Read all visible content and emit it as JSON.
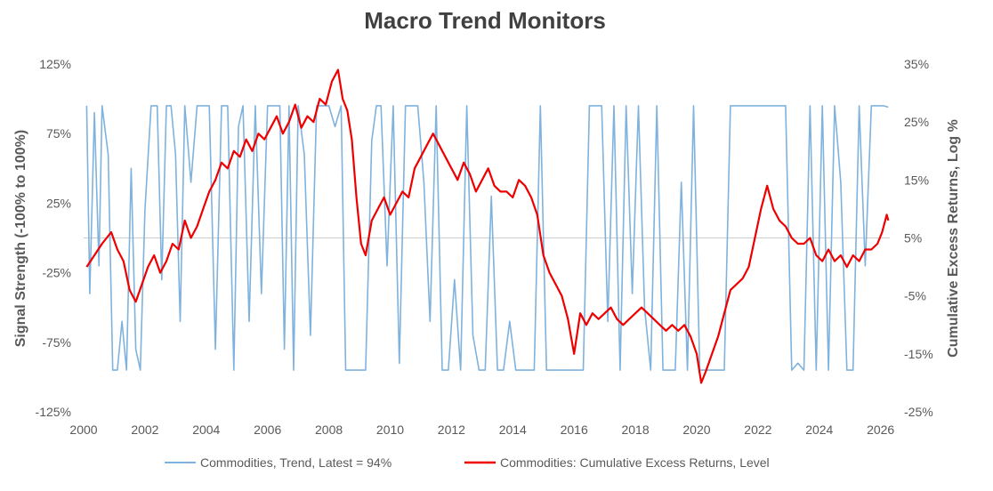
{
  "chart_data": {
    "type": "line",
    "title": "Macro Trend Monitors",
    "x_axis": {
      "ticks": [
        "2000",
        "2002",
        "2004",
        "2006",
        "2008",
        "2010",
        "2012",
        "2014",
        "2016",
        "2018",
        "2020",
        "2022",
        "2024",
        "2026"
      ],
      "range": [
        2000.0,
        2026.3
      ]
    },
    "y_left": {
      "label": "Signal Strength (-100% to 100%)",
      "range": [
        -125,
        125
      ],
      "ticks": [
        125,
        75,
        25,
        -25,
        -75,
        -125
      ],
      "tick_labels": [
        "125%",
        "75%",
        "25%",
        "-25%",
        "-75%",
        "-125%"
      ]
    },
    "y_right": {
      "label": "Cumulative Excess Returns, Log %",
      "range": [
        -25,
        35
      ],
      "ticks": [
        35,
        25,
        15,
        5,
        -5,
        -15,
        -25
      ],
      "tick_labels": [
        "35%",
        "25%",
        "15%",
        "5%",
        "-5%",
        "-15%",
        "-25%"
      ]
    },
    "series": [
      {
        "name": "Commodities, Trend, Latest = 94%",
        "axis": "left",
        "color": "#7fb2dd",
        "latest": 94,
        "x": [
          2000.1,
          2000.2,
          2000.35,
          2000.5,
          2000.6,
          2000.8,
          2000.95,
          2001.1,
          2001.25,
          2001.4,
          2001.55,
          2001.7,
          2001.85,
          2002.0,
          2002.2,
          2002.4,
          2002.55,
          2002.7,
          2002.85,
          2003.0,
          2003.15,
          2003.3,
          2003.5,
          2003.7,
          2003.9,
          2004.1,
          2004.3,
          2004.5,
          2004.7,
          2004.9,
          2005.05,
          2005.2,
          2005.4,
          2005.6,
          2005.8,
          2006.0,
          2006.2,
          2006.4,
          2006.55,
          2006.7,
          2006.85,
          2007.0,
          2007.2,
          2007.4,
          2007.6,
          2007.8,
          2008.0,
          2008.2,
          2008.4,
          2008.55,
          2008.7,
          2008.85,
          2009.0,
          2009.2,
          2009.4,
          2009.55,
          2009.7,
          2009.9,
          2010.1,
          2010.3,
          2010.5,
          2010.7,
          2010.9,
          2011.1,
          2011.3,
          2011.5,
          2011.7,
          2011.9,
          2012.1,
          2012.3,
          2012.5,
          2012.7,
          2012.9,
          2013.1,
          2013.3,
          2013.5,
          2013.7,
          2013.9,
          2014.1,
          2014.3,
          2014.5,
          2014.7,
          2014.9,
          2015.1,
          2015.3,
          2015.5,
          2015.7,
          2015.9,
          2016.1,
          2016.3,
          2016.5,
          2016.7,
          2016.9,
          2017.1,
          2017.3,
          2017.5,
          2017.7,
          2017.9,
          2018.1,
          2018.3,
          2018.5,
          2018.7,
          2018.9,
          2019.1,
          2019.3,
          2019.5,
          2019.7,
          2019.9,
          2020.1,
          2020.3,
          2020.5,
          2020.7,
          2020.9,
          2021.1,
          2021.3,
          2021.5,
          2021.7,
          2021.9,
          2022.1,
          2022.3,
          2022.5,
          2022.7,
          2022.9,
          2023.1,
          2023.3,
          2023.5,
          2023.7,
          2023.9,
          2024.1,
          2024.3,
          2024.5,
          2024.7,
          2024.9,
          2025.1,
          2025.3,
          2025.5,
          2025.7,
          2025.9,
          2026.1,
          2026.25
        ],
        "values": [
          95,
          -40,
          90,
          -20,
          95,
          60,
          -95,
          -95,
          -60,
          -95,
          50,
          -80,
          -95,
          20,
          95,
          95,
          -30,
          95,
          95,
          60,
          -60,
          95,
          40,
          95,
          95,
          95,
          -80,
          95,
          95,
          -95,
          80,
          95,
          -60,
          95,
          -40,
          95,
          95,
          95,
          -80,
          95,
          -95,
          95,
          60,
          -70,
          95,
          95,
          95,
          80,
          95,
          -95,
          -95,
          -95,
          -95,
          -95,
          70,
          95,
          95,
          -20,
          95,
          -90,
          95,
          95,
          95,
          40,
          -60,
          95,
          -95,
          -95,
          -30,
          -95,
          95,
          -70,
          -95,
          -95,
          30,
          -95,
          -95,
          -60,
          -95,
          -95,
          -95,
          -95,
          95,
          -95,
          -95,
          -95,
          -95,
          -95,
          -95,
          -95,
          95,
          95,
          95,
          -60,
          95,
          -95,
          95,
          -40,
          95,
          -50,
          -95,
          95,
          -95,
          -95,
          -95,
          40,
          -95,
          95,
          -95,
          -95,
          -95,
          -95,
          -95,
          95,
          95,
          95,
          95,
          95,
          95,
          95,
          95,
          95,
          95,
          -95,
          -90,
          -95,
          95,
          -95,
          95,
          -95,
          95,
          40,
          -95,
          -95,
          95,
          -20,
          95,
          95,
          95,
          94
        ]
      },
      {
        "name": "Commodities: Cumulative Excess Returns, Level",
        "axis": "right",
        "color": "#ee0000",
        "x": [
          2000.1,
          2000.35,
          2000.6,
          2000.9,
          2001.1,
          2001.3,
          2001.5,
          2001.7,
          2001.9,
          2002.1,
          2002.3,
          2002.5,
          2002.7,
          2002.9,
          2003.1,
          2003.3,
          2003.5,
          2003.7,
          2003.9,
          2004.1,
          2004.3,
          2004.5,
          2004.7,
          2004.9,
          2005.1,
          2005.3,
          2005.5,
          2005.7,
          2005.9,
          2006.1,
          2006.3,
          2006.5,
          2006.7,
          2006.9,
          2007.1,
          2007.3,
          2007.5,
          2007.7,
          2007.9,
          2008.1,
          2008.3,
          2008.45,
          2008.6,
          2008.75,
          2008.9,
          2009.05,
          2009.2,
          2009.4,
          2009.6,
          2009.8,
          2010.0,
          2010.2,
          2010.4,
          2010.6,
          2010.8,
          2011.0,
          2011.2,
          2011.4,
          2011.6,
          2011.8,
          2012.0,
          2012.2,
          2012.4,
          2012.6,
          2012.8,
          2013.0,
          2013.2,
          2013.4,
          2013.6,
          2013.8,
          2014.0,
          2014.2,
          2014.4,
          2014.6,
          2014.8,
          2015.0,
          2015.2,
          2015.4,
          2015.6,
          2015.8,
          2016.0,
          2016.2,
          2016.4,
          2016.6,
          2016.8,
          2017.0,
          2017.2,
          2017.4,
          2017.6,
          2017.8,
          2018.0,
          2018.2,
          2018.4,
          2018.6,
          2018.8,
          2019.0,
          2019.2,
          2019.4,
          2019.6,
          2019.8,
          2020.0,
          2020.15,
          2020.3,
          2020.5,
          2020.7,
          2020.9,
          2021.1,
          2021.3,
          2021.5,
          2021.7,
          2021.9,
          2022.1,
          2022.3,
          2022.5,
          2022.7,
          2022.9,
          2023.1,
          2023.3,
          2023.5,
          2023.7,
          2023.9,
          2024.1,
          2024.3,
          2024.5,
          2024.7,
          2024.9,
          2025.1,
          2025.3,
          2025.5,
          2025.7,
          2025.9,
          2026.05,
          2026.2,
          2026.25
        ],
        "values": [
          0,
          2,
          4,
          6,
          3,
          1,
          -4,
          -6,
          -3,
          0,
          2,
          -1,
          1,
          4,
          3,
          8,
          5,
          7,
          10,
          13,
          15,
          18,
          17,
          20,
          19,
          22,
          20,
          23,
          22,
          24,
          26,
          23,
          25,
          28,
          24,
          26,
          25,
          29,
          28,
          32,
          34,
          29,
          27,
          22,
          12,
          4,
          2,
          8,
          10,
          12,
          9,
          11,
          13,
          12,
          17,
          19,
          21,
          23,
          21,
          19,
          17,
          15,
          18,
          16,
          13,
          15,
          17,
          14,
          13,
          13,
          12,
          15,
          14,
          12,
          9,
          2,
          -1,
          -3,
          -5,
          -9,
          -15,
          -8,
          -10,
          -8,
          -9,
          -8,
          -7,
          -9,
          -10,
          -9,
          -8,
          -7,
          -8,
          -9,
          -10,
          -11,
          -10,
          -11,
          -10,
          -12,
          -15,
          -20,
          -18,
          -15,
          -12,
          -8,
          -4,
          -3,
          -2,
          0,
          5,
          10,
          14,
          10,
          8,
          7,
          5,
          4,
          4,
          5,
          2,
          1,
          3,
          1,
          2,
          0,
          2,
          1,
          3,
          3,
          4,
          6,
          9,
          8
        ]
      }
    ],
    "h_line": {
      "axis": "left",
      "value": 0,
      "color": "#cccccc"
    }
  },
  "colors": {
    "trend": "#7fb2dd",
    "returns": "#ee0000",
    "text": "#595959",
    "title": "#404040"
  }
}
